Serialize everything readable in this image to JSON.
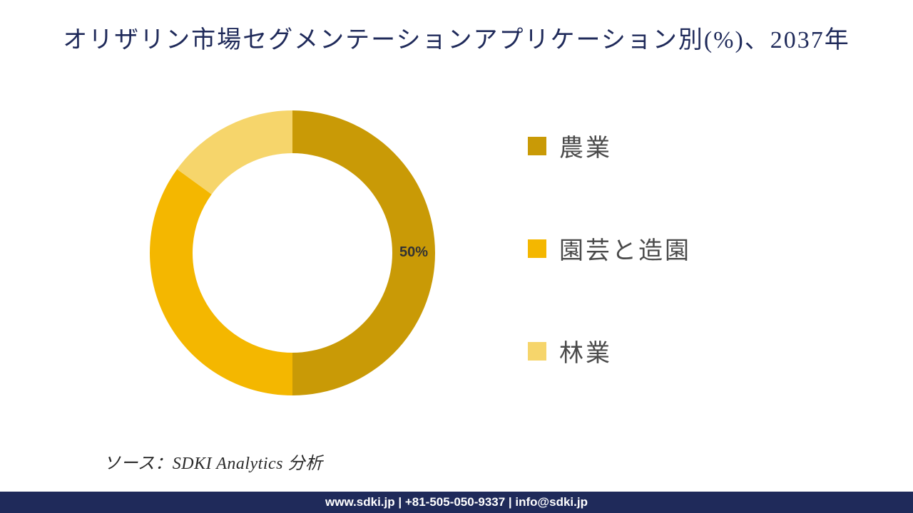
{
  "title": {
    "text": "オリザリン市場セグメンテーションアプリケーション別(%)、2037年",
    "color": "#1f2a5a",
    "fontsize": 34
  },
  "chart": {
    "type": "donut",
    "background_color": "#ffffff",
    "inner_radius_ratio": 0.7,
    "outer_radius": 200,
    "start_angle_deg": 0,
    "segments": [
      {
        "label": "農業",
        "value": 50,
        "color": "#c99a06",
        "show_value": true,
        "value_text": "50%"
      },
      {
        "label": "園芸と造園",
        "value": 35,
        "color": "#f4b700",
        "show_value": false
      },
      {
        "label": "林業",
        "value": 15,
        "color": "#f6d56b",
        "show_value": false
      }
    ],
    "value_label_fontsize": 20,
    "value_label_color": "#333333"
  },
  "legend": {
    "items": [
      {
        "label": "農業",
        "color": "#c99a06"
      },
      {
        "label": "園芸と造園",
        "color": "#f4b700"
      },
      {
        "label": "林業",
        "color": "#f6d56b"
      }
    ],
    "label_fontsize": 34,
    "label_color": "#4a4a4a",
    "swatch_size": 26
  },
  "source": {
    "text": "ソース：SDKI Analytics 分析",
    "fontsize": 24,
    "color": "#2a2a2a"
  },
  "footer": {
    "text": "www.sdki.jp | +81-505-050-9337 | info@sdki.jp",
    "background_color": "#1f2a5a",
    "text_color": "#ffffff",
    "fontsize": 17
  }
}
